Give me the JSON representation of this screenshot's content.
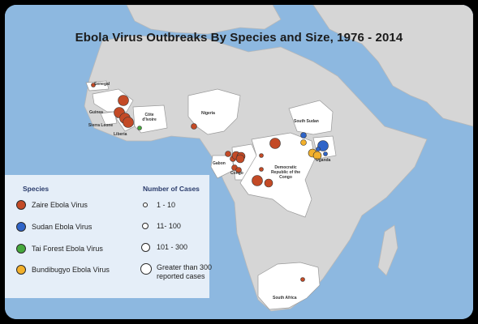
{
  "title": "Ebola Virus Outbreaks By Species and Size, 1976 - 2014",
  "colors": {
    "ocean": "#8db8e0",
    "land": "#d6d6d6",
    "affected_country": "#ffffff",
    "zaire": "#c34a26",
    "sudan": "#2f64c8",
    "tai_forest": "#46a93c",
    "bundibugyo": "#f2b02b"
  },
  "countries": {
    "senegal": "Senegal",
    "guinea": "Guinea",
    "sierra_leone": "Sierra Leone",
    "liberia": "Liberia",
    "cote_divoire": "Côte d'Ivoire",
    "nigeria": "Nigeria",
    "gabon": "Gabon",
    "congo": "Congo",
    "drc": "Democratic Republic of the Congo",
    "south_sudan": "South Sudan",
    "uganda": "Uganda",
    "south_africa": "South Africa"
  },
  "legend": {
    "species_header": "Species",
    "cases_header": "Number of Cases",
    "species": [
      {
        "label": "Zaire Ebola Virus",
        "color": "#c34a26"
      },
      {
        "label": "Sudan Ebola Virus",
        "color": "#2f64c8"
      },
      {
        "label": "Tai Forest Ebola Virus",
        "color": "#46a93c"
      },
      {
        "label": "Bundibugyo Ebola Virus",
        "color": "#f2b02b"
      }
    ],
    "sizes": [
      "1 - 10",
      "11- 100",
      "101 - 300",
      "Greater than 300 reported cases"
    ]
  },
  "outbreaks": [
    {
      "place": "Senegal",
      "species": "zaire",
      "size": 1
    },
    {
      "place": "Guinea",
      "species": "zaire",
      "size": 4
    },
    {
      "place": "Guinea",
      "species": "zaire",
      "size": 4
    },
    {
      "place": "Sierra Leone",
      "species": "zaire",
      "size": 4
    },
    {
      "place": "Liberia",
      "species": "zaire",
      "size": 4
    },
    {
      "place": "Côte d'Ivoire",
      "species": "tai_forest",
      "size": 1
    },
    {
      "place": "Nigeria",
      "species": "zaire",
      "size": 2
    },
    {
      "place": "Gabon",
      "species": "zaire",
      "size": 2
    },
    {
      "place": "Gabon",
      "species": "zaire",
      "size": 2
    },
    {
      "place": "Gabon",
      "species": "zaire",
      "size": 3
    },
    {
      "place": "Gabon",
      "species": "zaire",
      "size": 3
    },
    {
      "place": "Congo",
      "species": "zaire",
      "size": 2
    },
    {
      "place": "Congo",
      "species": "zaire",
      "size": 2
    },
    {
      "place": "Congo",
      "species": "zaire",
      "size": 3
    },
    {
      "place": "Democratic Republic of the Congo",
      "species": "zaire",
      "size": 4
    },
    {
      "place": "Democratic Republic of the Congo",
      "species": "zaire",
      "size": 1
    },
    {
      "place": "Democratic Republic of the Congo",
      "species": "zaire",
      "size": 1
    },
    {
      "place": "Democratic Republic of the Congo",
      "species": "zaire",
      "size": 4
    },
    {
      "place": "Democratic Republic of the Congo",
      "species": "zaire",
      "size": 3
    },
    {
      "place": "Democratic Republic of the Congo",
      "species": "bundibugyo",
      "size": 3
    },
    {
      "place": "South Sudan",
      "species": "sudan",
      "size": 2
    },
    {
      "place": "South Sudan",
      "species": "bundibugyo",
      "size": 2
    },
    {
      "place": "Uganda",
      "species": "sudan",
      "size": 4
    },
    {
      "place": "Uganda",
      "species": "bundibugyo",
      "size": 3
    },
    {
      "place": "Uganda",
      "species": "sudan",
      "size": 1
    },
    {
      "place": "Uganda",
      "species": "sudan",
      "size": 1
    },
    {
      "place": "South Africa",
      "species": "zaire",
      "size": 1
    }
  ]
}
